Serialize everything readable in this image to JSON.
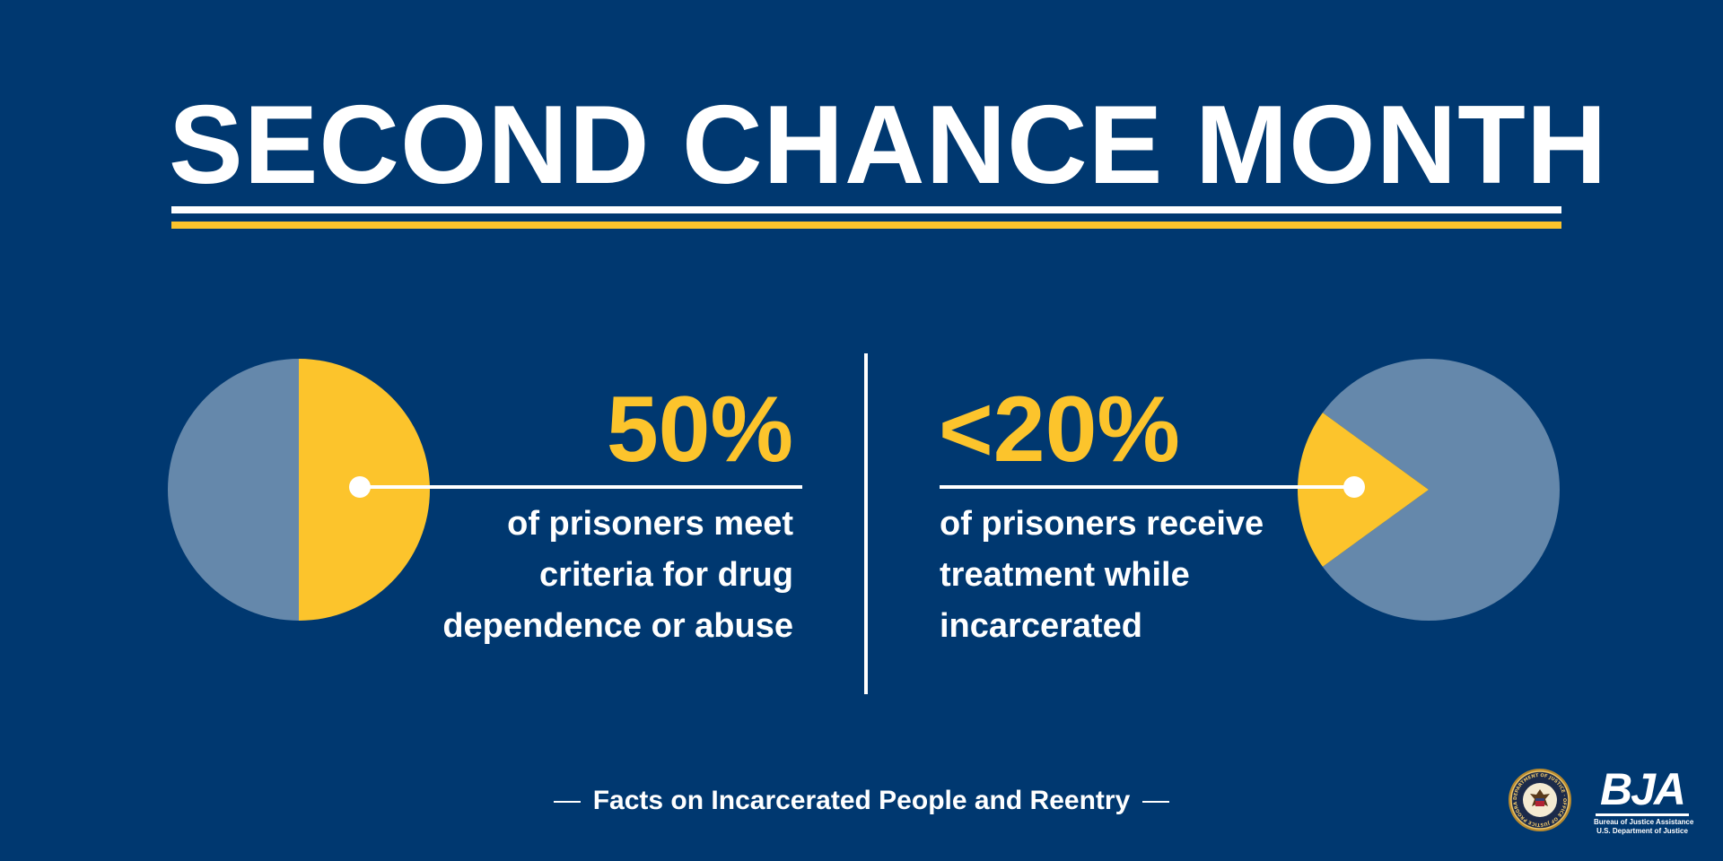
{
  "title": "SECOND CHANCE MONTH",
  "colors": {
    "background": "#003870",
    "accent": "#fcc42c",
    "pie_remainder": "#6588ab",
    "text": "#ffffff"
  },
  "chart_data": [
    {
      "type": "pie",
      "value_label": "50%",
      "description": [
        "of prisoners meet",
        "criteria for drug",
        "dependence or abuse"
      ],
      "slices": [
        {
          "value": 50,
          "color": "#fcc42c"
        },
        {
          "value": 50,
          "color": "#6588ab"
        }
      ]
    },
    {
      "type": "pie",
      "value_label": "<20%",
      "description": [
        "of prisoners receive",
        "treatment while",
        "incarcerated"
      ],
      "slices": [
        {
          "value": 20,
          "color": "#fcc42c"
        },
        {
          "value": 80,
          "color": "#6588ab"
        }
      ]
    }
  ],
  "footer": "Facts on Incarcerated People and Reentry",
  "logos": {
    "seal": {
      "icon": "doj-seal-icon",
      "text": "DEPARTMENT OF JUSTICE · OFFICE OF JUSTICE PROGRAMS"
    },
    "bja": {
      "mark": "BJA",
      "line1": "Bureau of Justice Assistance",
      "line2": "U.S. Department of Justice"
    }
  }
}
